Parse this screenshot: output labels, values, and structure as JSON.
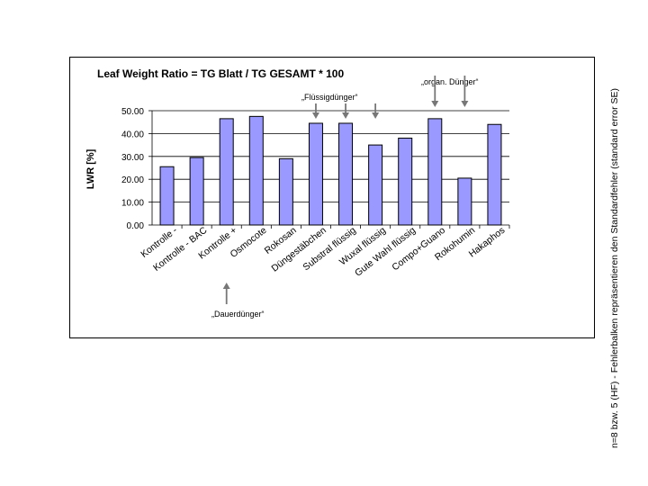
{
  "chart_data": {
    "type": "bar",
    "title": "Leaf Weight Ratio = TG Blatt / TG GESAMT * 100",
    "ylabel": "LWR [%]",
    "xlabel": "",
    "ylim": [
      0,
      50
    ],
    "ytick_labels": [
      "0.00",
      "10.00",
      "20.00",
      "30.00",
      "40.00",
      "50.00"
    ],
    "grid": true,
    "bar_color": "#9999ff",
    "categories": [
      "Kontrolle -",
      "Kontrolle - BAC",
      "Kontrolle +",
      "Osmocote",
      "Rokosan",
      "Düngestäbchen",
      "Substral flüssig",
      "Wuxal flüssig",
      "Gute Wahl flüssig",
      "Compo+Guano",
      "Rokohumin",
      "Hakaphos"
    ],
    "values": [
      25.5,
      29.5,
      46.5,
      47.5,
      29.0,
      44.5,
      44.5,
      35.0,
      38.0,
      46.5,
      20.5,
      44.0
    ],
    "annotations": {
      "fluessig": "„Flüssigdünger“",
      "organ": "„organ. Dünger“",
      "dauer": "„Dauerdünger“"
    }
  },
  "side_note": "n=8 bzw. 5 (HF) - Fehlerbalken repräsentieren den Standardfehler (standard error SE)"
}
